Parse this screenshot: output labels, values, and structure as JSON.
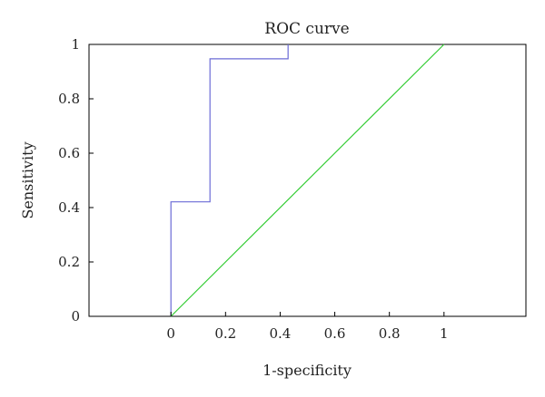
{
  "chart_data": {
    "type": "line",
    "title": "ROC curve",
    "xlabel": "1-specificity",
    "ylabel": "Sensitivity",
    "xlim": [
      -0.3,
      1.3
    ],
    "ylim": [
      0,
      1
    ],
    "x_ticks": [
      {
        "value": 0,
        "label": "0"
      },
      {
        "value": 0.2,
        "label": "0.2"
      },
      {
        "value": 0.4,
        "label": "0.4"
      },
      {
        "value": 0.6,
        "label": "0.6"
      },
      {
        "value": 0.8,
        "label": "0.8"
      },
      {
        "value": 1,
        "label": "1"
      }
    ],
    "y_ticks": [
      {
        "value": 0,
        "label": "0"
      },
      {
        "value": 0.2,
        "label": "0.2"
      },
      {
        "value": 0.4,
        "label": "0.4"
      },
      {
        "value": 0.6,
        "label": "0.6"
      },
      {
        "value": 0.8,
        "label": "0.8"
      },
      {
        "value": 1,
        "label": "1"
      }
    ],
    "grid": false,
    "legend": "none",
    "series": [
      {
        "color": "#6b6bd6",
        "style": "step",
        "x": [
          0,
          0,
          0.143,
          0.143,
          0.429,
          0.429
        ],
        "y": [
          0,
          0.421,
          0.421,
          0.947,
          0.947,
          1.0
        ]
      },
      {
        "color": "#33cc33",
        "style": "line",
        "x": [
          0,
          1
        ],
        "y": [
          0,
          1
        ]
      }
    ]
  }
}
